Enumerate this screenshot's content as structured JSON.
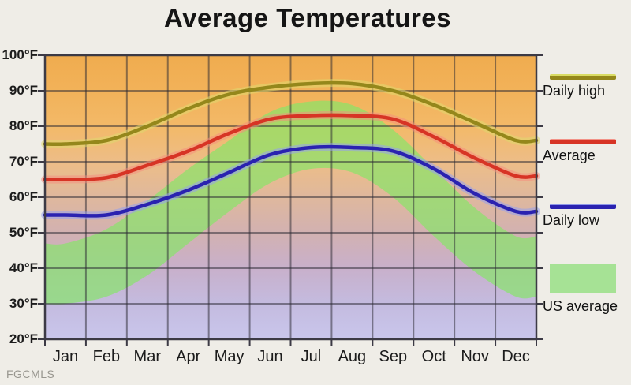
{
  "title": "Average Temperatures",
  "watermark": "FGCMLS",
  "legend": [
    {
      "label": "Daily high",
      "type": "line",
      "color": "#94871b",
      "halo": "#d9dc64"
    },
    {
      "label": "Average",
      "type": "line",
      "color": "#d73425",
      "halo": "#f29287"
    },
    {
      "label": "Daily low",
      "type": "line",
      "color": "#2a22b0",
      "halo": "#8d96e8"
    },
    {
      "label": "US average",
      "type": "area",
      "color": "#a6e295"
    }
  ],
  "chart_data": {
    "type": "line",
    "title": "Average Temperatures",
    "categories": [
      "Jan",
      "Feb",
      "Mar",
      "Apr",
      "May",
      "Jun",
      "Jul",
      "Aug",
      "Sep",
      "Oct",
      "Nov",
      "Dec"
    ],
    "series": [
      {
        "name": "Daily high",
        "color": "#94871b",
        "halo": "rgba(222,217,110,0.55)",
        "values": [
          75,
          76,
          80,
          85,
          89,
          91,
          92,
          92,
          90,
          86,
          81,
          76
        ]
      },
      {
        "name": "Average",
        "color": "#d73425",
        "halo": "rgba(245,140,125,0.5)",
        "values": [
          65,
          65.5,
          69,
          73,
          78,
          82,
          83,
          83,
          82,
          77,
          71,
          66
        ]
      },
      {
        "name": "Daily low",
        "color": "#2a22b0",
        "halo": "rgba(150,160,238,0.55)",
        "values": [
          55,
          55,
          58,
          62,
          67,
          72,
          74,
          74,
          73,
          68,
          61,
          56
        ]
      }
    ],
    "band": {
      "name": "US average",
      "fill": "rgba(133,230,103,0.68)",
      "high": [
        47,
        51,
        59,
        68,
        76,
        84,
        87,
        86,
        79,
        68,
        57,
        49
      ],
      "low": [
        30,
        32,
        38,
        47,
        56,
        64,
        68,
        67,
        60,
        49,
        39,
        32
      ]
    },
    "ylim": [
      20,
      100
    ],
    "ytick_step": 10,
    "ytick_suffix": "°F",
    "grid": true,
    "legend_position": "right",
    "gridline_color": "rgba(45,42,52,0.52)",
    "axis_color": "#3c3a45",
    "background_gradient": [
      {
        "at": 100,
        "color": "#f0ac4f"
      },
      {
        "at": 90,
        "color": "#f2b259"
      },
      {
        "at": 80,
        "color": "#f3b968"
      },
      {
        "at": 70,
        "color": "#edbd87"
      },
      {
        "at": 60,
        "color": "#dfb89d"
      },
      {
        "at": 50,
        "color": "#d2b1b1"
      },
      {
        "at": 40,
        "color": "#c8b0cb"
      },
      {
        "at": 30,
        "color": "#c4bbdf"
      },
      {
        "at": 20,
        "color": "#c9c6ec"
      }
    ]
  }
}
